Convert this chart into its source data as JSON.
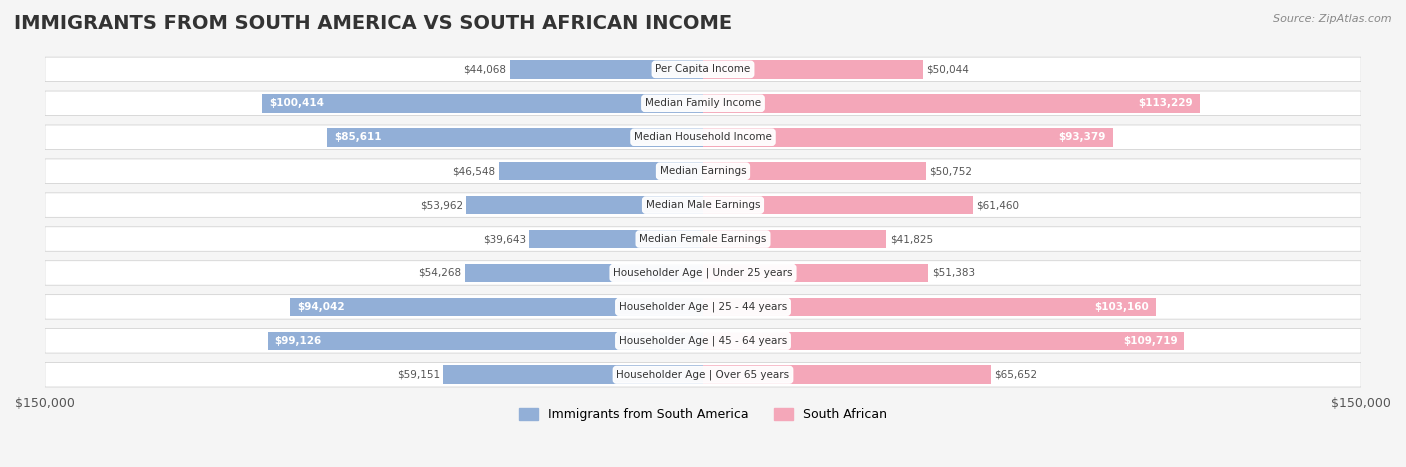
{
  "title": "IMMIGRANTS FROM SOUTH AMERICA VS SOUTH AFRICAN INCOME",
  "source": "Source: ZipAtlas.com",
  "categories": [
    "Per Capita Income",
    "Median Family Income",
    "Median Household Income",
    "Median Earnings",
    "Median Male Earnings",
    "Median Female Earnings",
    "Householder Age | Under 25 years",
    "Householder Age | 25 - 44 years",
    "Householder Age | 45 - 64 years",
    "Householder Age | Over 65 years"
  ],
  "left_values": [
    44068,
    100414,
    85611,
    46548,
    53962,
    39643,
    54268,
    94042,
    99126,
    59151
  ],
  "right_values": [
    50044,
    113229,
    93379,
    50752,
    61460,
    41825,
    51383,
    103160,
    109719,
    65652
  ],
  "left_labels": [
    "$44,068",
    "$100,414",
    "$85,611",
    "$46,548",
    "$53,962",
    "$39,643",
    "$54,268",
    "$94,042",
    "$99,126",
    "$59,151"
  ],
  "right_labels": [
    "$50,044",
    "$113,229",
    "$93,379",
    "$50,752",
    "$61,460",
    "$41,825",
    "$51,383",
    "$103,160",
    "$109,719",
    "$65,652"
  ],
  "max_value": 150000,
  "left_color": "#92afd7",
  "right_color": "#f4a7b9",
  "left_color_solid": "#6b8fc7",
  "right_color_solid": "#f07fa0",
  "left_legend": "Immigrants from South America",
  "right_legend": "South African",
  "bg_color": "#f5f5f5",
  "row_bg_color": "#ffffff",
  "title_fontsize": 14,
  "label_fontsize": 9,
  "axis_label": "$150,000"
}
